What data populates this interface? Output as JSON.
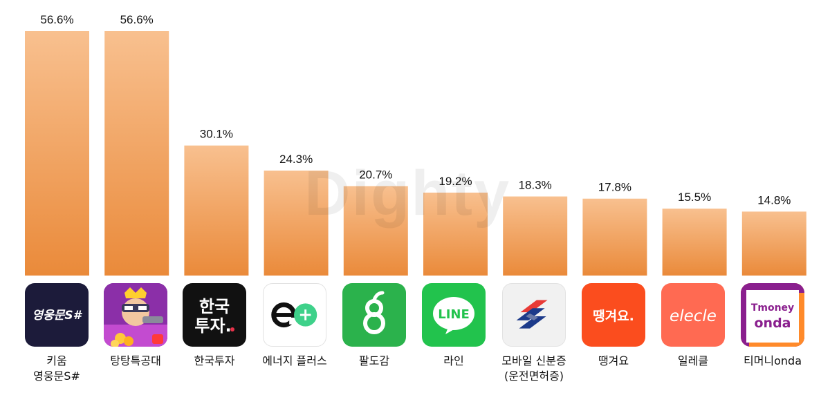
{
  "watermark": "Dighty",
  "chart_data": {
    "type": "bar",
    "categories": [
      "키움 영웅문S#",
      "탕탕특공대",
      "한국투자",
      "에너지 플러스",
      "팔도감",
      "라인",
      "모바일 신분증 (운전면허증)",
      "땡겨요",
      "일레클",
      "티머니onda"
    ],
    "values": [
      56.6,
      56.6,
      30.1,
      24.3,
      20.7,
      19.2,
      18.3,
      17.8,
      15.5,
      14.8
    ],
    "value_labels": [
      "56.6%",
      "56.6%",
      "30.1%",
      "24.3%",
      "20.7%",
      "19.2%",
      "18.3%",
      "17.8%",
      "15.5%",
      "14.8%"
    ],
    "title": "",
    "xlabel": "",
    "ylabel": "",
    "ylim": [
      0,
      56.6
    ],
    "grid": false,
    "colors": {
      "bar_top": "#f8c08f",
      "bar_bottom": "#ea8a3a"
    }
  },
  "apps": [
    {
      "lines": [
        "키움",
        "영웅문S#"
      ],
      "icon": "kiwoom-icon",
      "icon_text": "영웅문S#"
    },
    {
      "lines": [
        "탕탕특공대"
      ],
      "icon": "tangtang-icon"
    },
    {
      "lines": [
        "한국투자"
      ],
      "icon": "korea-investment-icon",
      "icon_text": [
        "한국",
        "투자."
      ]
    },
    {
      "lines": [
        "에너지 플러스"
      ],
      "icon": "energy-plus-icon"
    },
    {
      "lines": [
        "팔도감"
      ],
      "icon": "paldogam-icon"
    },
    {
      "lines": [
        "라인"
      ],
      "icon": "line-icon",
      "icon_text": "LINE"
    },
    {
      "lines": [
        "모바일 신분증",
        "(운전면허증)"
      ],
      "icon": "mobile-id-icon"
    },
    {
      "lines": [
        "땡겨요"
      ],
      "icon": "ddangyo-icon",
      "icon_text": "땡겨요."
    },
    {
      "lines": [
        "일레클"
      ],
      "icon": "elecle-icon",
      "icon_text": "elecle"
    },
    {
      "lines": [
        "티머니onda"
      ],
      "icon": "tmoney-onda-icon",
      "icon_text": [
        "Tmoney",
        "onda"
      ]
    }
  ]
}
